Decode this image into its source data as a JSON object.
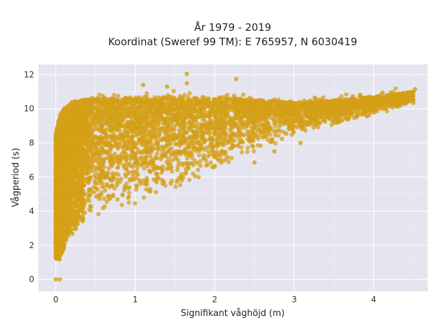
{
  "chart_data": {
    "type": "scatter",
    "title": "År 1979 - 2019",
    "subtitle": "Koordinat (Sweref 99 TM): E 765957, N 6030419",
    "xlabel": "Signifikant våghöjd (m)",
    "ylabel": "Vågperiod (s)",
    "xlim": [
      -0.22,
      4.68
    ],
    "ylim": [
      -0.7,
      12.6
    ],
    "x_ticks": [
      0,
      1,
      2,
      3,
      4
    ],
    "y_ticks": [
      0,
      2,
      4,
      6,
      8,
      10,
      12
    ],
    "grid": true,
    "legend": "none",
    "marker_color": "#D4A017",
    "plot_background": "#E5E5EF",
    "density_envelope": {
      "x": [
        0.0,
        0.05,
        0.1,
        0.2,
        0.3,
        0.5,
        0.7,
        1.0,
        1.3,
        1.6,
        2.0,
        2.3,
        2.6,
        3.0,
        3.5,
        4.0,
        4.5
      ],
      "y_min": [
        1.2,
        1.1,
        1.8,
        2.6,
        3.1,
        3.6,
        4.0,
        4.4,
        4.9,
        5.4,
        6.3,
        7.0,
        7.6,
        8.4,
        9.0,
        9.6,
        10.3
      ],
      "y_max": [
        8.5,
        9.6,
        10.0,
        10.4,
        10.5,
        10.6,
        10.6,
        10.7,
        10.7,
        10.7,
        10.6,
        10.6,
        10.5,
        10.4,
        10.5,
        10.7,
        11.0
      ]
    },
    "notable_points": [
      {
        "x": 0.0,
        "y": 0.0
      },
      {
        "x": 0.05,
        "y": 0.0
      },
      {
        "x": 1.65,
        "y": 12.05
      },
      {
        "x": 1.65,
        "y": 11.5
      },
      {
        "x": 2.27,
        "y": 11.75
      },
      {
        "x": 1.4,
        "y": 11.3
      },
      {
        "x": 1.1,
        "y": 11.4
      },
      {
        "x": 4.52,
        "y": 11.15
      },
      {
        "x": 4.28,
        "y": 10.85
      },
      {
        "x": 4.1,
        "y": 10.65
      },
      {
        "x": 3.08,
        "y": 8.0
      },
      {
        "x": 2.5,
        "y": 6.85
      },
      {
        "x": 2.75,
        "y": 7.5
      }
    ]
  }
}
